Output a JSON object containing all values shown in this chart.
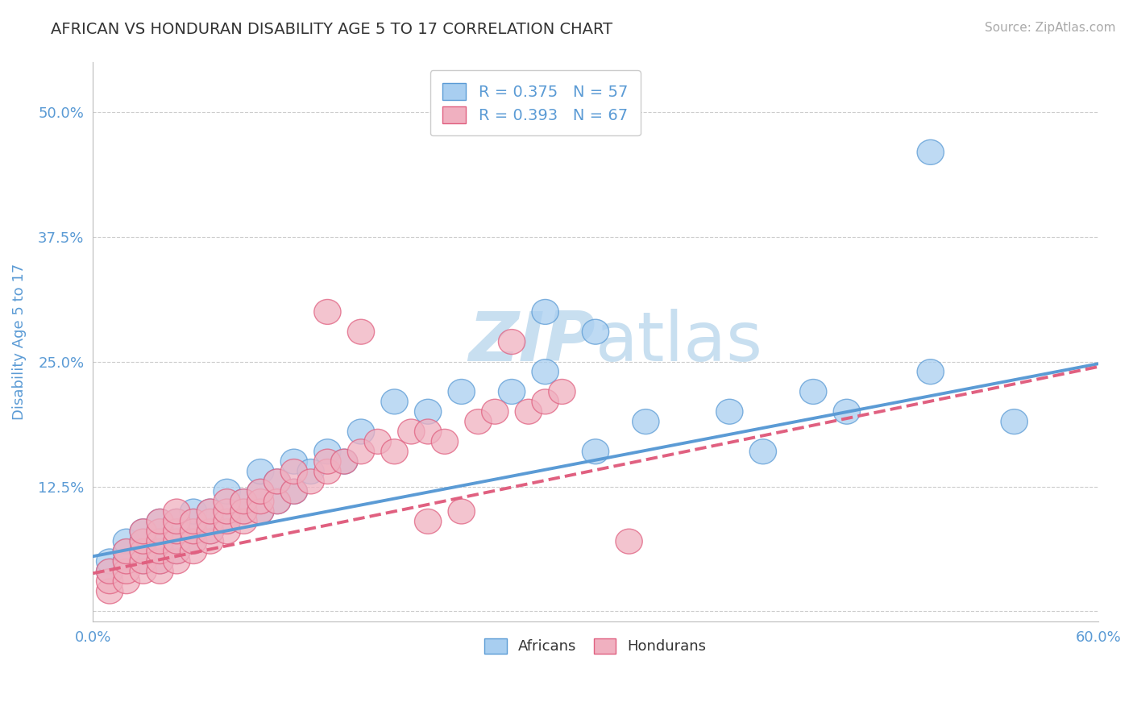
{
  "title": "AFRICAN VS HONDURAN DISABILITY AGE 5 TO 17 CORRELATION CHART",
  "source_text": "Source: ZipAtlas.com",
  "ylabel": "Disability Age 5 to 17",
  "xlim": [
    0.0,
    0.6
  ],
  "ylim": [
    -0.01,
    0.55
  ],
  "xticks": [
    0.0,
    0.1,
    0.2,
    0.3,
    0.4,
    0.5,
    0.6
  ],
  "xticklabels": [
    "0.0%",
    "",
    "",
    "",
    "",
    "",
    "60.0%"
  ],
  "yticks": [
    0.0,
    0.125,
    0.25,
    0.375,
    0.5
  ],
  "yticklabels": [
    "",
    "12.5%",
    "25.0%",
    "37.5%",
    "50.0%"
  ],
  "title_color": "#333333",
  "axis_color": "#bbbbbb",
  "tick_color": "#5b9bd5",
  "grid_color": "#cccccc",
  "watermark_zip": "ZIP",
  "watermark_atlas": "atlas",
  "watermark_color": "#c8dff0",
  "african_color": "#a8cef0",
  "african_edge_color": "#5b9bd5",
  "honduran_color": "#f0b0c0",
  "honduran_edge_color": "#e06080",
  "african_R": 0.375,
  "african_N": 57,
  "honduran_R": 0.393,
  "honduran_N": 67,
  "legend_R_color": "#5b9bd5",
  "legend_label_african": "Africans",
  "legend_label_honduran": "Hondurans",
  "african_scatter_x": [
    0.01,
    0.01,
    0.02,
    0.02,
    0.02,
    0.03,
    0.03,
    0.03,
    0.03,
    0.04,
    0.04,
    0.04,
    0.04,
    0.04,
    0.05,
    0.05,
    0.05,
    0.05,
    0.06,
    0.06,
    0.06,
    0.06,
    0.07,
    0.07,
    0.07,
    0.08,
    0.08,
    0.08,
    0.09,
    0.09,
    0.1,
    0.1,
    0.1,
    0.11,
    0.11,
    0.12,
    0.12,
    0.13,
    0.14,
    0.15,
    0.16,
    0.18,
    0.2,
    0.22,
    0.25,
    0.27,
    0.3,
    0.33,
    0.38,
    0.4,
    0.43,
    0.45,
    0.5,
    0.27,
    0.3,
    0.5,
    0.55
  ],
  "african_scatter_y": [
    0.04,
    0.05,
    0.05,
    0.06,
    0.07,
    0.05,
    0.06,
    0.07,
    0.08,
    0.05,
    0.06,
    0.07,
    0.08,
    0.09,
    0.06,
    0.07,
    0.08,
    0.09,
    0.07,
    0.08,
    0.09,
    0.1,
    0.08,
    0.09,
    0.1,
    0.09,
    0.1,
    0.12,
    0.1,
    0.11,
    0.1,
    0.12,
    0.14,
    0.11,
    0.13,
    0.12,
    0.15,
    0.14,
    0.16,
    0.15,
    0.18,
    0.21,
    0.2,
    0.22,
    0.22,
    0.24,
    0.16,
    0.19,
    0.2,
    0.16,
    0.22,
    0.2,
    0.24,
    0.3,
    0.28,
    0.46,
    0.19
  ],
  "honduran_scatter_x": [
    0.01,
    0.01,
    0.01,
    0.02,
    0.02,
    0.02,
    0.02,
    0.03,
    0.03,
    0.03,
    0.03,
    0.03,
    0.04,
    0.04,
    0.04,
    0.04,
    0.04,
    0.04,
    0.05,
    0.05,
    0.05,
    0.05,
    0.05,
    0.05,
    0.06,
    0.06,
    0.06,
    0.06,
    0.07,
    0.07,
    0.07,
    0.07,
    0.08,
    0.08,
    0.08,
    0.08,
    0.09,
    0.09,
    0.09,
    0.1,
    0.1,
    0.1,
    0.11,
    0.11,
    0.12,
    0.12,
    0.13,
    0.14,
    0.14,
    0.15,
    0.16,
    0.17,
    0.18,
    0.19,
    0.2,
    0.21,
    0.23,
    0.24,
    0.26,
    0.27,
    0.28,
    0.14,
    0.16,
    0.2,
    0.22,
    0.25,
    0.32
  ],
  "honduran_scatter_y": [
    0.02,
    0.03,
    0.04,
    0.03,
    0.04,
    0.05,
    0.06,
    0.04,
    0.05,
    0.06,
    0.07,
    0.08,
    0.04,
    0.05,
    0.06,
    0.07,
    0.08,
    0.09,
    0.05,
    0.06,
    0.07,
    0.08,
    0.09,
    0.1,
    0.06,
    0.07,
    0.08,
    0.09,
    0.07,
    0.08,
    0.09,
    0.1,
    0.08,
    0.09,
    0.1,
    0.11,
    0.09,
    0.1,
    0.11,
    0.1,
    0.11,
    0.12,
    0.11,
    0.13,
    0.12,
    0.14,
    0.13,
    0.14,
    0.15,
    0.15,
    0.16,
    0.17,
    0.16,
    0.18,
    0.18,
    0.17,
    0.19,
    0.2,
    0.2,
    0.21,
    0.22,
    0.3,
    0.28,
    0.09,
    0.1,
    0.27,
    0.07
  ],
  "african_line_x": [
    0.0,
    0.6
  ],
  "african_line_y": [
    0.055,
    0.248
  ],
  "honduran_line_x": [
    0.0,
    0.6
  ],
  "honduran_line_y": [
    0.038,
    0.245
  ]
}
